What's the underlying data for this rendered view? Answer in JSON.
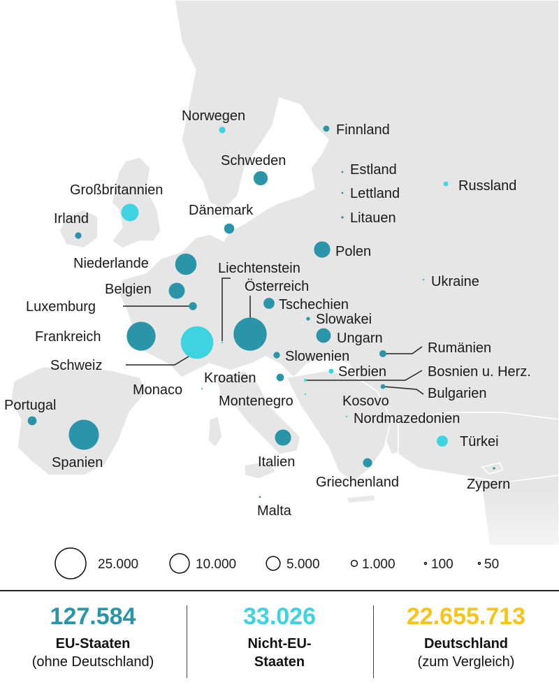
{
  "colors": {
    "eu": "#2a94a8",
    "non_eu": "#3dd3e0",
    "germany": "#f6c41a",
    "land": "#e6e6e6",
    "sea": "#ffffff",
    "border": "#ffffff"
  },
  "legend": [
    {
      "label": "25.000",
      "value": 25000
    },
    {
      "label": "10.000",
      "value": 10000
    },
    {
      "label": "5.000",
      "value": 5000
    },
    {
      "label": "1.000",
      "value": 1000
    },
    {
      "label": "100",
      "value": 100
    },
    {
      "label": "50",
      "value": 50
    }
  ],
  "countries": [
    {
      "name": "Norwegen",
      "group": "non_eu",
      "value": 1100
    },
    {
      "name": "Finnland",
      "group": "eu",
      "value": 1000
    },
    {
      "name": "Schweden",
      "group": "eu",
      "value": 5300
    },
    {
      "name": "Estland",
      "group": "eu",
      "value": 100
    },
    {
      "name": "Lettland",
      "group": "eu",
      "value": 100
    },
    {
      "name": "Litauen",
      "group": "eu",
      "value": 150
    },
    {
      "name": "Russland",
      "group": "non_eu",
      "value": 600
    },
    {
      "name": "Großbritannien",
      "group": "non_eu",
      "value": 8000
    },
    {
      "name": "Irland",
      "group": "eu",
      "value": 1100
    },
    {
      "name": "Dänemark",
      "group": "eu",
      "value": 2700
    },
    {
      "name": "Polen",
      "group": "eu",
      "value": 7000
    },
    {
      "name": "Niederlande",
      "group": "eu",
      "value": 12000
    },
    {
      "name": "Liechtenstein",
      "group": "non_eu",
      "value": 50
    },
    {
      "name": "Belgien",
      "group": "eu",
      "value": 6800
    },
    {
      "name": "Österreich",
      "group": "eu",
      "value": 29000
    },
    {
      "name": "Luxemburg",
      "group": "eu",
      "value": 1700
    },
    {
      "name": "Tschechien",
      "group": "eu",
      "value": 3200
    },
    {
      "name": "Ukraine",
      "group": "non_eu",
      "value": 100
    },
    {
      "name": "Slowakei",
      "group": "eu",
      "value": 350
    },
    {
      "name": "Frankreich",
      "group": "eu",
      "value": 22000
    },
    {
      "name": "Schweiz",
      "group": "non_eu",
      "value": 28000
    },
    {
      "name": "Ungarn",
      "group": "eu",
      "value": 5600
    },
    {
      "name": "Rumänien",
      "group": "eu",
      "value": 1300
    },
    {
      "name": "Slowenien",
      "group": "eu",
      "value": 1100
    },
    {
      "name": "Serbien",
      "group": "non_eu",
      "value": 650
    },
    {
      "name": "Bosnien u. Herz.",
      "group": "non_eu",
      "value": 200
    },
    {
      "name": "Kroatien",
      "group": "eu",
      "value": 1500
    },
    {
      "name": "Monaco",
      "group": "non_eu",
      "value": 50
    },
    {
      "name": "Bulgarien",
      "group": "eu",
      "value": 600
    },
    {
      "name": "Montenegro",
      "group": "non_eu",
      "value": 50
    },
    {
      "name": "Kosovo",
      "group": "non_eu",
      "value": 50
    },
    {
      "name": "Nordmazedonien",
      "group": "non_eu",
      "value": 50
    },
    {
      "name": "Portugal",
      "group": "eu",
      "value": 2100
    },
    {
      "name": "Spanien",
      "group": "eu",
      "value": 24000
    },
    {
      "name": "Italien",
      "group": "eu",
      "value": 6900
    },
    {
      "name": "Türkei",
      "group": "non_eu",
      "value": 3200
    },
    {
      "name": "Griechenland",
      "group": "eu",
      "value": 2200
    },
    {
      "name": "Zypern",
      "group": "eu",
      "value": 150
    },
    {
      "name": "Malta",
      "group": "eu",
      "value": 100
    }
  ],
  "summary": [
    {
      "number": "127.584",
      "color": "eu",
      "line1": "EU-Staaten",
      "line2": "(ohne Deutschland)",
      "line2_bold": false
    },
    {
      "number": "33.026",
      "color": "non_eu",
      "line1": "Nicht-EU-",
      "line2": "Staaten",
      "line2_bold": true
    },
    {
      "number": "22.655.713",
      "color": "germany",
      "line1": "Deutschland",
      "line2": "(zum Vergleich)",
      "line2_bold": false
    }
  ]
}
